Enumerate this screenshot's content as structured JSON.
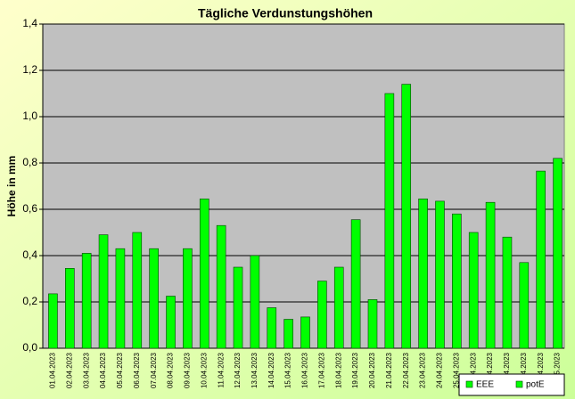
{
  "chart_data": {
    "type": "bar",
    "title": "Tägliche Verdunstungshöhen",
    "y_label": "Höhe in mm",
    "categories": [
      "01.04.2023",
      "02.04.2023",
      "03.04.2023",
      "04.04.2023",
      "05.04.2023",
      "06.04.2023",
      "07.04.2023",
      "08.04.2023",
      "09.04.2023",
      "10.04.2023",
      "11.04.2023",
      "12.04.2023",
      "13.04.2023",
      "14.04.2023",
      "15.04.2023",
      "16.04.2023",
      "17.04.2023",
      "18.04.2023",
      "19.04.2023",
      "20.04.2023",
      "21.04.2023",
      "22.04.2023",
      "23.04.2023",
      "24.04.2023",
      "25.04.2023",
      "26.04.2023",
      "27.04.2023",
      "28.04.2023",
      "29.04.2023",
      "30.04.2023",
      "01.05.2023"
    ],
    "series": [
      {
        "name": "EEE",
        "color": "#00ff00",
        "values": [
          null,
          null,
          null,
          null,
          null,
          null,
          null,
          null,
          null,
          null,
          null,
          null,
          null,
          null,
          null,
          null,
          null,
          null,
          null,
          null,
          null,
          null,
          null,
          null,
          null,
          null,
          null,
          null,
          null,
          null,
          null
        ]
      },
      {
        "name": "potE",
        "color": "#00ff00",
        "values": [
          0.235,
          0.345,
          0.41,
          0.49,
          0.43,
          0.5,
          0.43,
          0.225,
          0.43,
          0.645,
          0.53,
          0.35,
          0.4,
          0.175,
          0.125,
          0.135,
          0.29,
          0.35,
          0.555,
          0.21,
          1.1,
          1.14,
          0.645,
          0.635,
          0.58,
          0.5,
          0.63,
          0.48,
          0.37,
          0.765,
          0.82
        ]
      }
    ],
    "ylim": [
      0,
      1.4
    ],
    "yticks": [
      {
        "value": 0,
        "label": "0,0"
      },
      {
        "value": 0.2,
        "label": "0,2"
      },
      {
        "value": 0.4,
        "label": "0,4"
      },
      {
        "value": 0.6,
        "label": "0,6"
      },
      {
        "value": 0.8,
        "label": "0,8"
      },
      {
        "value": 1.0,
        "label": "1,0"
      },
      {
        "value": 1.2,
        "label": "1,2"
      },
      {
        "value": 1.4,
        "label": "1,4"
      }
    ],
    "grid": true,
    "legend": "bottom-right"
  }
}
